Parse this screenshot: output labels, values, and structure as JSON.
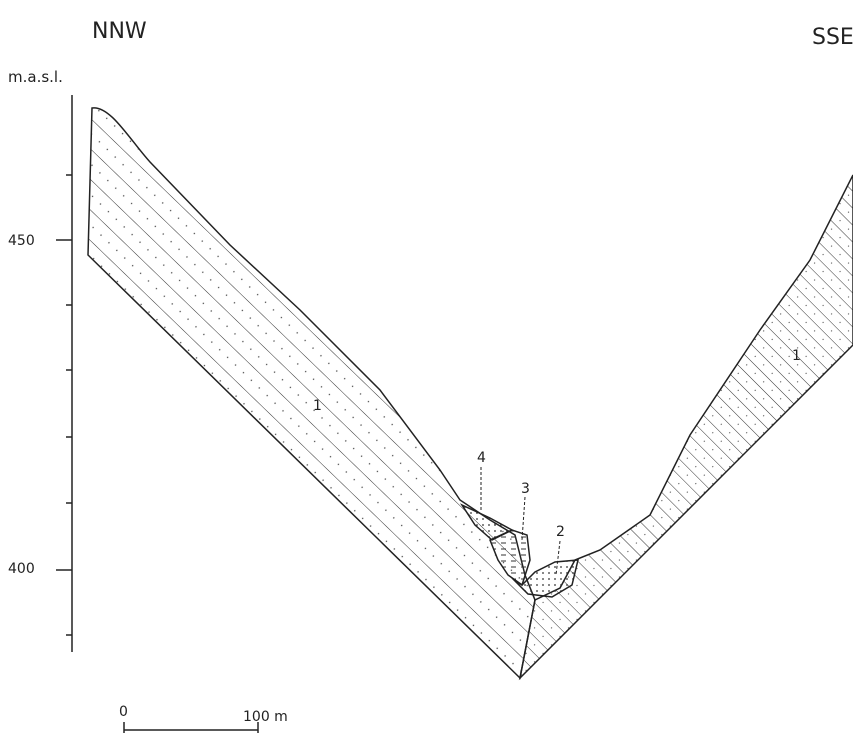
{
  "header": {
    "left": "NNW",
    "right": "SSE"
  },
  "axis": {
    "unit": "m.a.s.l.",
    "labels": [
      "450",
      "400"
    ]
  },
  "units": {
    "left_bedrock": "1",
    "right_bedrock": "1",
    "deposit_2": "2",
    "deposit_3": "3",
    "deposit_4": "4"
  },
  "scale": {
    "start": "0",
    "end": "100 m"
  }
}
